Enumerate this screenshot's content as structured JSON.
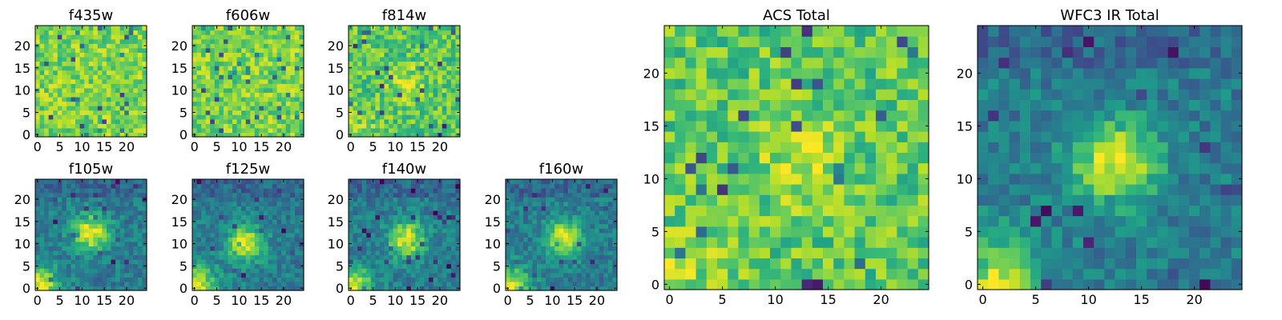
{
  "chart_data": [
    {
      "type": "heatmap",
      "title": "f435w",
      "pattern": "noise",
      "seed": 11,
      "xticks": [
        "0",
        "5",
        "10",
        "15",
        "20"
      ],
      "yticks": [
        "0",
        "5",
        "10",
        "15",
        "20"
      ],
      "xlim": [
        0,
        25
      ],
      "ylim": [
        0,
        25
      ],
      "colormap": "viridis"
    },
    {
      "type": "heatmap",
      "title": "f606w",
      "pattern": "noise",
      "seed": 23,
      "xticks": [
        "0",
        "5",
        "10",
        "15",
        "20"
      ],
      "yticks": [
        "0",
        "5",
        "10",
        "15",
        "20"
      ],
      "xlim": [
        0,
        25
      ],
      "ylim": [
        0,
        25
      ],
      "colormap": "viridis"
    },
    {
      "type": "heatmap",
      "title": "f814w",
      "pattern": "faint-source",
      "seed": 37,
      "center": [
        12.5,
        11.5
      ],
      "xticks": [
        "0",
        "5",
        "10",
        "15",
        "20"
      ],
      "yticks": [
        "0",
        "5",
        "10",
        "15",
        "20"
      ],
      "xlim": [
        0,
        25
      ],
      "ylim": [
        0,
        25
      ],
      "colormap": "viridis"
    },
    {
      "type": "heatmap",
      "title": "f105w",
      "pattern": "source",
      "seed": 41,
      "center": [
        12,
        12.5
      ],
      "xticks": [
        "0",
        "5",
        "10",
        "15",
        "20"
      ],
      "yticks": [
        "0",
        "5",
        "10",
        "15",
        "20"
      ],
      "xlim": [
        0,
        25
      ],
      "ylim": [
        0,
        25
      ],
      "colormap": "viridis"
    },
    {
      "type": "heatmap",
      "title": "f125w",
      "pattern": "source",
      "seed": 53,
      "center": [
        11.5,
        10
      ],
      "xticks": [
        "0",
        "5",
        "10",
        "15",
        "20"
      ],
      "yticks": [
        "0",
        "5",
        "10",
        "15",
        "20"
      ],
      "xlim": [
        0,
        25
      ],
      "ylim": [
        0,
        25
      ],
      "colormap": "viridis"
    },
    {
      "type": "heatmap",
      "title": "f140w",
      "pattern": "source",
      "seed": 67,
      "center": [
        12.5,
        11
      ],
      "xticks": [
        "0",
        "5",
        "10",
        "15",
        "20"
      ],
      "yticks": [
        "0",
        "5",
        "10",
        "15",
        "20"
      ],
      "xlim": [
        0,
        25
      ],
      "ylim": [
        0,
        25
      ],
      "colormap": "viridis"
    },
    {
      "type": "heatmap",
      "title": "f160w",
      "pattern": "source",
      "seed": 79,
      "center": [
        12.5,
        11.5
      ],
      "xticks": [
        "0",
        "5",
        "10",
        "15",
        "20"
      ],
      "yticks": [
        "0",
        "5",
        "10",
        "15",
        "20"
      ],
      "xlim": [
        0,
        25
      ],
      "ylim": [
        0,
        25
      ],
      "colormap": "viridis"
    },
    {
      "type": "heatmap",
      "title": "ACS Total",
      "pattern": "faint-source",
      "seed": 97,
      "center": [
        12.5,
        11.5
      ],
      "xticks": [
        "0",
        "5",
        "10",
        "15",
        "20"
      ],
      "yticks": [
        "0",
        "5",
        "10",
        "15",
        "20"
      ],
      "xlim": [
        0,
        25
      ],
      "ylim": [
        0,
        25
      ],
      "colormap": "viridis"
    },
    {
      "type": "heatmap",
      "title": "WFC3 IR Total",
      "pattern": "source",
      "seed": 101,
      "center": [
        12.5,
        11.5
      ],
      "xticks": [
        "0",
        "5",
        "10",
        "15",
        "20"
      ],
      "yticks": [
        "0",
        "5",
        "10",
        "15",
        "20"
      ],
      "xlim": [
        0,
        25
      ],
      "ylim": [
        0,
        25
      ],
      "colormap": "viridis"
    }
  ]
}
